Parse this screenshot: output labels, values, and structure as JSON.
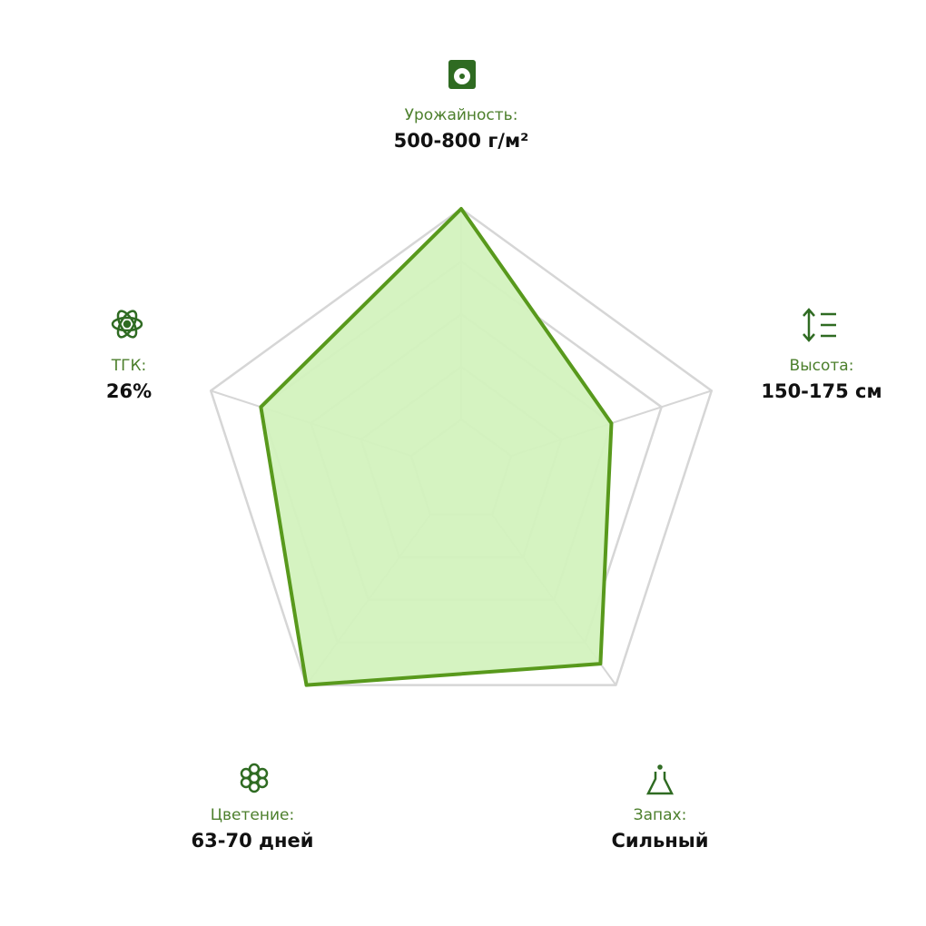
{
  "chart_data": {
    "type": "radar",
    "categories": [
      "Урожайность:",
      "Высота:",
      "Запах:",
      "Цветение:",
      "ТГК:"
    ],
    "details": [
      "500-800 г/м²",
      "150-175 см",
      "Сильный",
      "63-70 дней",
      "26%"
    ],
    "values": [
      5,
      3,
      4.5,
      5,
      4
    ],
    "rlim": [
      0,
      5
    ],
    "rticks": [
      1,
      2,
      3,
      4,
      5
    ],
    "grid": true,
    "color": "#58991c",
    "fill": "#d3f2be"
  }
}
